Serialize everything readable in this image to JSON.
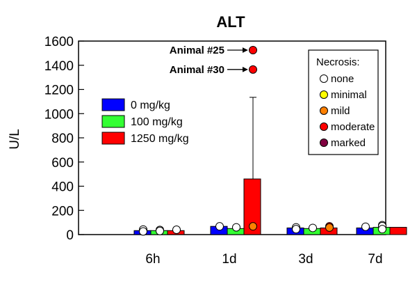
{
  "chart_data": {
    "type": "bar",
    "title": "ALT",
    "ylabel": "U/L",
    "xlabel": "",
    "ylim": [
      0,
      1600
    ],
    "yticks": [
      0,
      200,
      400,
      600,
      800,
      1000,
      1200,
      1400,
      1600
    ],
    "categories": [
      "6h",
      "1d",
      "3d",
      "7d"
    ],
    "series": [
      {
        "name": "0 mg/kg",
        "color": "#0000ff",
        "values": [
          33,
          68,
          55,
          55
        ]
      },
      {
        "name": "100 mg/kg",
        "color": "#33ff33",
        "values": [
          33,
          50,
          50,
          60
        ]
      },
      {
        "name": "1250 mg/kg",
        "color": "#ff0000",
        "values": [
          33,
          460,
          55,
          60
        ]
      }
    ],
    "error_bars": [
      {
        "category": "1d",
        "series": "1250 mg/kg",
        "upper": 1135
      }
    ],
    "points": [
      {
        "category": "6h",
        "series": "0 mg/kg",
        "necrosis": "none",
        "y": 42
      },
      {
        "category": "6h",
        "series": "0 mg/kg",
        "necrosis": "none",
        "y": 26
      },
      {
        "category": "6h",
        "series": "100 mg/kg",
        "necrosis": "none",
        "y": 38
      },
      {
        "category": "6h",
        "series": "100 mg/kg",
        "necrosis": "none",
        "y": 30
      },
      {
        "category": "6h",
        "series": "1250 mg/kg",
        "necrosis": "none",
        "y": 40
      },
      {
        "category": "1d",
        "series": "0 mg/kg",
        "necrosis": "none",
        "y": 68
      },
      {
        "category": "1d",
        "series": "100 mg/kg",
        "necrosis": "none",
        "y": 60
      },
      {
        "category": "1d",
        "series": "1250 mg/kg",
        "necrosis": "mild",
        "y": 68
      },
      {
        "category": "1d",
        "series": "1250 mg/kg",
        "necrosis": "moderate",
        "y": 1525
      },
      {
        "category": "1d",
        "series": "1250 mg/kg",
        "necrosis": "moderate",
        "y": 1365
      },
      {
        "category": "3d",
        "series": "0 mg/kg",
        "necrosis": "none",
        "y": 60
      },
      {
        "category": "3d",
        "series": "0 mg/kg",
        "necrosis": "none",
        "y": 45
      },
      {
        "category": "3d",
        "series": "100 mg/kg",
        "necrosis": "none",
        "y": 55
      },
      {
        "category": "3d",
        "series": "1250 mg/kg",
        "necrosis": "moderate",
        "y": 68
      },
      {
        "category": "3d",
        "series": "1250 mg/kg",
        "necrosis": "mild",
        "y": 58
      },
      {
        "category": "7d",
        "series": "0 mg/kg",
        "necrosis": "none",
        "y": 65
      },
      {
        "category": "7d",
        "series": "100 mg/kg",
        "necrosis": "none",
        "y": 78
      },
      {
        "category": "7d",
        "series": "100 mg/kg",
        "necrosis": "none",
        "y": 70
      },
      {
        "category": "7d",
        "series": "100 mg/kg",
        "necrosis": "none",
        "y": 45
      }
    ],
    "annotations": [
      {
        "text": "Animal #25",
        "category": "1d",
        "series": "1250 mg/kg",
        "y": 1525
      },
      {
        "text": "Animal #30",
        "category": "1d",
        "series": "1250 mg/kg",
        "y": 1365
      }
    ],
    "necrosis_legend": {
      "title": "Necrosis:",
      "items": [
        {
          "label": "none",
          "color": "#ffffff"
        },
        {
          "label": "minimal",
          "color": "#ffff00"
        },
        {
          "label": "mild",
          "color": "#ff8000"
        },
        {
          "label": "moderate",
          "color": "#ff0000"
        },
        {
          "label": "marked",
          "color": "#800040"
        }
      ]
    },
    "legend_position": "top-left",
    "grid": false
  }
}
